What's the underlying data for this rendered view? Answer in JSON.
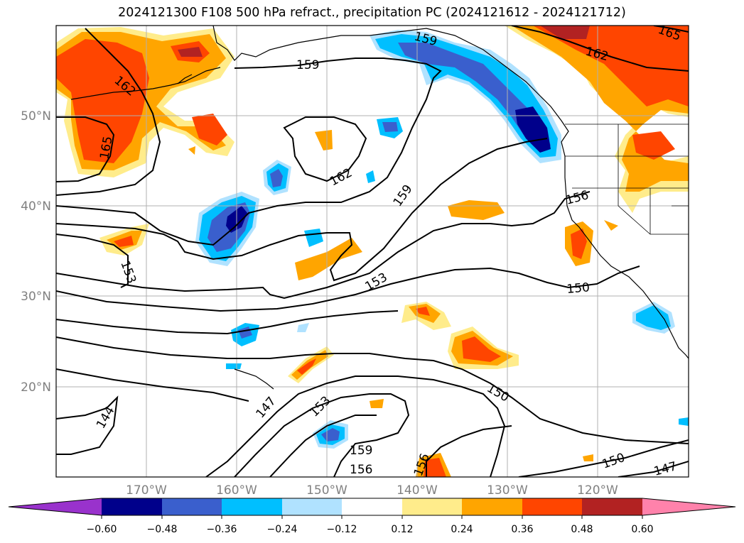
{
  "title": "2024121300 F108 500 hPa refract., precipitation PC (2024121612 - 2024121712)",
  "map": {
    "lat_labels": [
      "50°N",
      "40°N",
      "30°N",
      "20°N"
    ],
    "lon_labels": [
      "170°W",
      "160°W",
      "150°W",
      "140°W",
      "130°W",
      "120°W"
    ],
    "contour_labels": [
      {
        "id": "c159-north",
        "text": "159"
      },
      {
        "id": "c159-gulf",
        "text": "159"
      },
      {
        "id": "c162-ne",
        "text": "162"
      },
      {
        "id": "c165-ne",
        "text": "165"
      },
      {
        "id": "c162-nw",
        "text": "162"
      },
      {
        "id": "c165-w",
        "text": "165"
      },
      {
        "id": "c162-center",
        "text": "162"
      },
      {
        "id": "c159-center",
        "text": "159"
      },
      {
        "id": "c156-east",
        "text": "156"
      },
      {
        "id": "c153-west",
        "text": "153"
      },
      {
        "id": "c153-center",
        "text": "153"
      },
      {
        "id": "c150-east",
        "text": "150"
      },
      {
        "id": "c150-south",
        "text": "150"
      },
      {
        "id": "c147-south",
        "text": "147"
      },
      {
        "id": "c153-south",
        "text": "153"
      },
      {
        "id": "c144-sw",
        "text": "144"
      },
      {
        "id": "c159-south",
        "text": "159"
      },
      {
        "id": "c156-south",
        "text": "156"
      },
      {
        "id": "c156-bottom",
        "text": "156"
      },
      {
        "id": "c150-se",
        "text": "150"
      },
      {
        "id": "c147-se",
        "text": "147"
      }
    ]
  },
  "colorbar": {
    "colors": [
      "#9932cc",
      "#00008b",
      "#3a5fcd",
      "#00bfff",
      "#b0e2ff",
      "#ffffff",
      "#ffec8b",
      "#ffa500",
      "#ff4500",
      "#b22222",
      "#ff82ab"
    ],
    "tick_labels": [
      "−0.60",
      "−0.48",
      "−0.36",
      "−0.24",
      "−0.12",
      "0.12",
      "0.24",
      "0.36",
      "0.48",
      "0.60"
    ]
  }
}
